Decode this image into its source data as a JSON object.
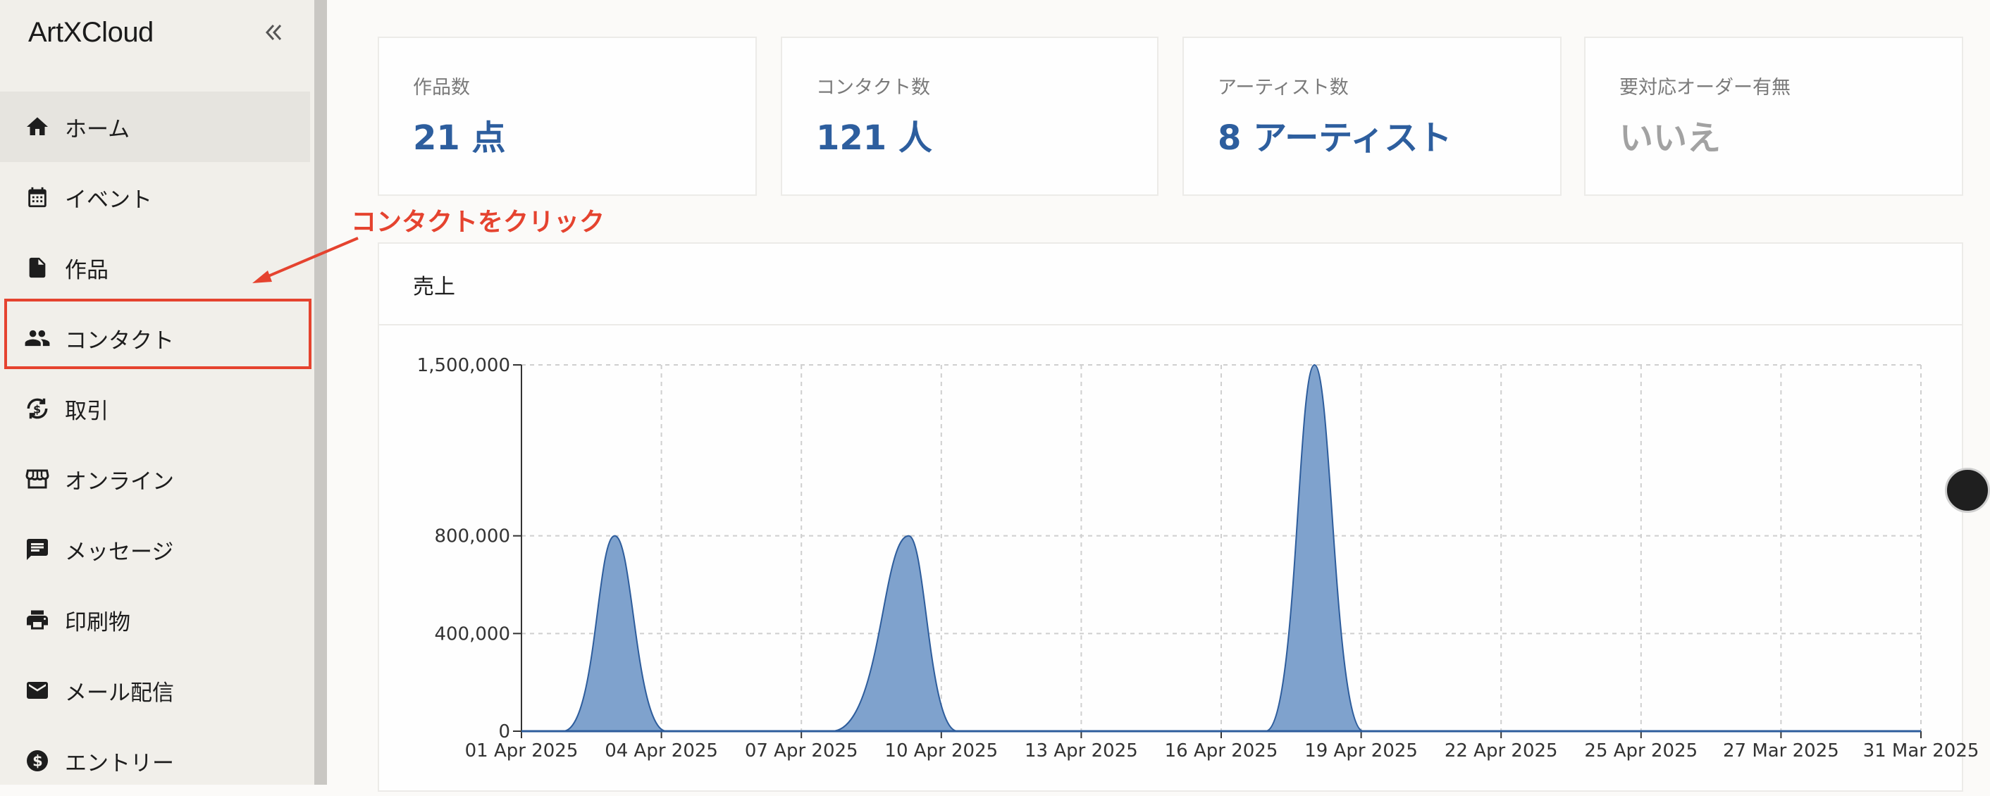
{
  "app": {
    "logo": "ArtXCloud"
  },
  "sidebar": {
    "items": [
      {
        "label": "ホーム",
        "icon": "home-icon"
      },
      {
        "label": "イベント",
        "icon": "calendar-icon"
      },
      {
        "label": "作品",
        "icon": "document-icon"
      },
      {
        "label": "コンタクト",
        "icon": "people-icon"
      },
      {
        "label": "取引",
        "icon": "currency-exchange-icon"
      },
      {
        "label": "オンライン",
        "icon": "storefront-icon"
      },
      {
        "label": "メッセージ",
        "icon": "chat-icon"
      },
      {
        "label": "印刷物",
        "icon": "printer-icon"
      },
      {
        "label": "メール配信",
        "icon": "mail-icon"
      },
      {
        "label": "エントリー",
        "icon": "dollar-circle-icon"
      }
    ]
  },
  "annotation": {
    "text": "コンタクトをクリック",
    "color": "#e5432f"
  },
  "stats": [
    {
      "label": "作品数",
      "value": "21 点"
    },
    {
      "label": "コンタクト数",
      "value": "121 人"
    },
    {
      "label": "アーティスト数",
      "value": "8 アーティスト"
    },
    {
      "label": "要対応オーダー有無",
      "value": "いいえ"
    }
  ],
  "sales_panel": {
    "title": "売上"
  },
  "colors": {
    "accent": "#2d5e9e",
    "area_fill": "#7fa2cd",
    "area_stroke": "#2e5d9c",
    "highlight": "#e5432f"
  },
  "chart_data": {
    "type": "area",
    "title": "売上",
    "categories": [
      "01 Apr 2025",
      "04 Apr 2025",
      "07 Apr 2025",
      "10 Apr 2025",
      "13 Apr 2025",
      "16 Apr 2025",
      "19 Apr 2025",
      "22 Apr 2025",
      "25 Apr 2025",
      "27 Mar 2025",
      "31 Mar 2025"
    ],
    "y_ticks": [
      "0",
      "400,000",
      "800,000",
      "1,500,000"
    ],
    "ylim": [
      0,
      1500000
    ],
    "grid": true,
    "series": [
      {
        "peaks": [
          {
            "x": "03 Apr 2025",
            "value": 800000
          },
          {
            "x": "09 Apr 2025",
            "value": 800000
          },
          {
            "x": "18 Apr 2025",
            "value": 1500000
          }
        ]
      }
    ]
  }
}
